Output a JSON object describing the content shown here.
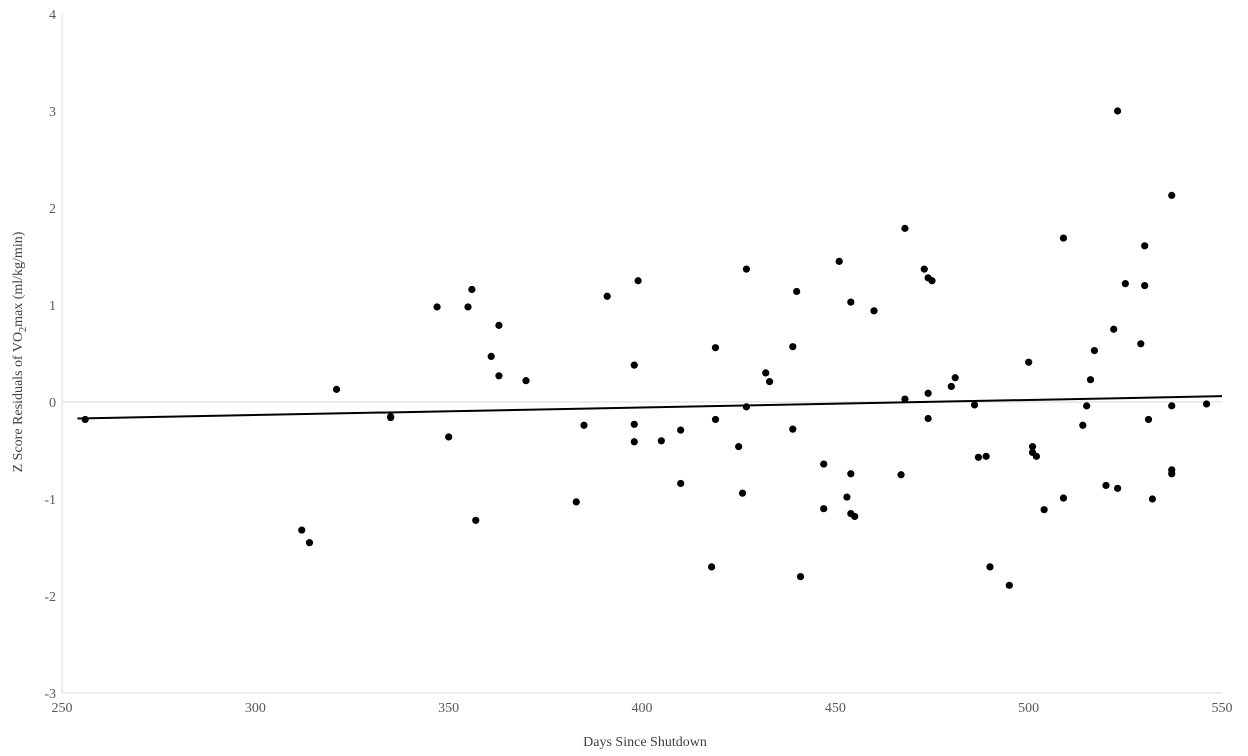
{
  "chart_data": {
    "type": "scatter",
    "title": "",
    "xlabel": "Days Since Shutdown",
    "ylabel": {
      "part1": "Z Score Residuals  of VO",
      "subscript": "2",
      "part2": "max  (ml/kg/min)"
    },
    "xlim": [
      250,
      550
    ],
    "ylim": [
      -3,
      4
    ],
    "xticks": [
      "250",
      "300",
      "350",
      "400",
      "450",
      "500",
      "550"
    ],
    "yticks": [
      "-3",
      "-2",
      "-1",
      "0",
      "1",
      "2",
      "3",
      "4"
    ],
    "grid": false,
    "legend": false,
    "series": [
      {
        "marker_color": "#000000",
        "points": [
          [
            256,
            -0.18
          ],
          [
            312,
            -1.32
          ],
          [
            314,
            -1.45
          ],
          [
            321,
            0.13
          ],
          [
            335,
            -0.15
          ],
          [
            335,
            -0.16
          ],
          [
            347,
            0.98
          ],
          [
            350,
            -0.36
          ],
          [
            355,
            0.98
          ],
          [
            356,
            1.16
          ],
          [
            357,
            -1.22
          ],
          [
            361,
            0.47
          ],
          [
            363,
            0.79
          ],
          [
            363,
            0.27
          ],
          [
            370,
            0.22
          ],
          [
            383,
            -1.03
          ],
          [
            385,
            -0.24
          ],
          [
            391,
            1.09
          ],
          [
            398,
            0.38
          ],
          [
            398,
            -0.23
          ],
          [
            398,
            -0.41
          ],
          [
            399,
            1.25
          ],
          [
            405,
            -0.4
          ],
          [
            410,
            -0.29
          ],
          [
            410,
            -0.84
          ],
          [
            418,
            -1.7
          ],
          [
            419,
            0.56
          ],
          [
            419,
            -0.18
          ],
          [
            425,
            -0.46
          ],
          [
            426,
            -0.94
          ],
          [
            427,
            1.37
          ],
          [
            427,
            -0.05
          ],
          [
            432,
            0.3
          ],
          [
            433,
            0.21
          ],
          [
            439,
            0.57
          ],
          [
            439,
            -0.28
          ],
          [
            440,
            1.14
          ],
          [
            441,
            -1.8
          ],
          [
            447,
            -0.64
          ],
          [
            447,
            -1.1
          ],
          [
            451,
            1.45
          ],
          [
            453,
            -0.98
          ],
          [
            454,
            1.03
          ],
          [
            454,
            -0.74
          ],
          [
            454,
            -1.15
          ],
          [
            455,
            -1.18
          ],
          [
            460,
            0.94
          ],
          [
            467,
            -0.75
          ],
          [
            468,
            1.79
          ],
          [
            468,
            0.03
          ],
          [
            473,
            1.37
          ],
          [
            474,
            1.28
          ],
          [
            474,
            0.09
          ],
          [
            474,
            -0.17
          ],
          [
            475,
            1.25
          ],
          [
            480,
            0.16
          ],
          [
            481,
            0.25
          ],
          [
            486,
            -0.03
          ],
          [
            487,
            -0.57
          ],
          [
            489,
            -0.56
          ],
          [
            490,
            -1.7
          ],
          [
            495,
            -1.89
          ],
          [
            500,
            0.41
          ],
          [
            501,
            -0.46
          ],
          [
            501,
            -0.52
          ],
          [
            502,
            -0.56
          ],
          [
            504,
            -1.11
          ],
          [
            509,
            1.69
          ],
          [
            509,
            -0.99
          ],
          [
            514,
            -0.24
          ],
          [
            515,
            -0.04
          ],
          [
            516,
            0.23
          ],
          [
            517,
            0.53
          ],
          [
            520,
            -0.86
          ],
          [
            522,
            0.75
          ],
          [
            523,
            3.0
          ],
          [
            523,
            -0.89
          ],
          [
            525,
            1.22
          ],
          [
            529,
            0.6
          ],
          [
            530,
            1.61
          ],
          [
            530,
            1.2
          ],
          [
            531,
            -0.18
          ],
          [
            532,
            -1.0
          ],
          [
            537,
            2.13
          ],
          [
            537,
            -0.04
          ],
          [
            537,
            -0.7
          ],
          [
            537,
            -0.74
          ],
          [
            546,
            -0.02
          ]
        ]
      }
    ],
    "trendline": {
      "type": "linear",
      "points": [
        [
          254,
          -0.17
        ],
        [
          550,
          0.06
        ]
      ],
      "color": "#000000"
    },
    "zero_line_color": "#d9d9d9",
    "axis_color": "#d9d9d9"
  }
}
